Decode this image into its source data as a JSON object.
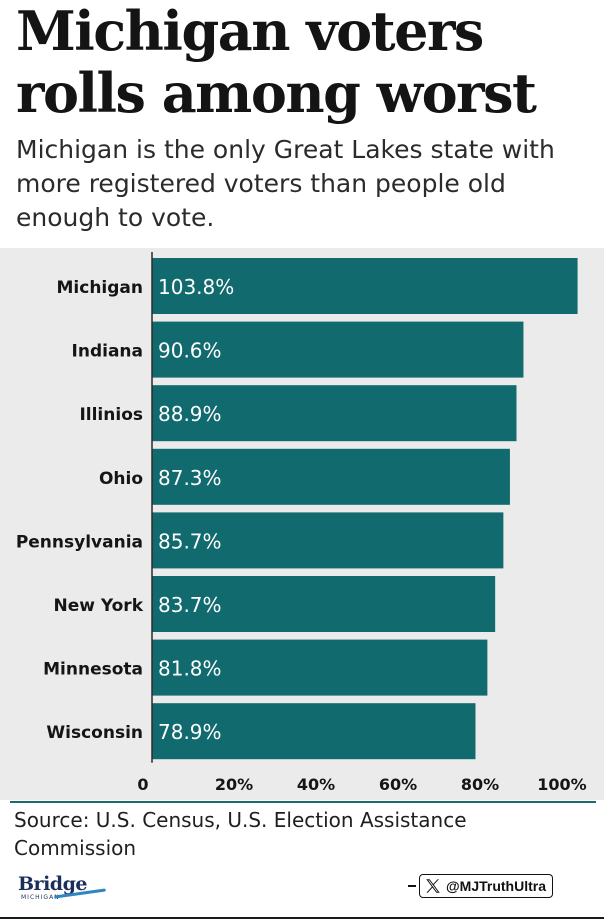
{
  "header": {
    "title_line1": "Michigan voters",
    "title_line2": "rolls among worst",
    "subtitle": "Michigan is the only Great Lakes state with more registered voters than people old enough to vote."
  },
  "chart_data": {
    "type": "bar",
    "orientation": "horizontal",
    "categories": [
      "Michigan",
      "Indiana",
      "Illinios",
      "Ohio",
      "Pennsylvania",
      "New York",
      "Minnesota",
      "Wisconsin"
    ],
    "values": [
      103.8,
      90.6,
      88.9,
      87.3,
      85.7,
      83.7,
      81.8,
      78.9
    ],
    "value_labels": [
      "103.8%",
      "90.6%",
      "88.9%",
      "87.3%",
      "85.7%",
      "83.7%",
      "81.8%",
      "78.9%"
    ],
    "x_ticks": [
      0,
      20,
      40,
      60,
      80,
      100
    ],
    "x_tick_labels": [
      "0",
      "20%",
      "40%",
      "60%",
      "80%",
      "100%"
    ],
    "xlim": [
      0,
      104
    ],
    "xlabel": "",
    "ylabel": "",
    "bar_color": "#106a6e",
    "grid": false
  },
  "footer": {
    "source": "Source: U.S. Census, U.S. Election Assistance Commission",
    "logo_main": "Bridge",
    "logo_sub": "MICHIGAN",
    "handle": "@MJTruthUltra"
  },
  "colors": {
    "bar": "#106a6e",
    "panel": "#ebebeb",
    "divider": "#1d6a6d"
  }
}
